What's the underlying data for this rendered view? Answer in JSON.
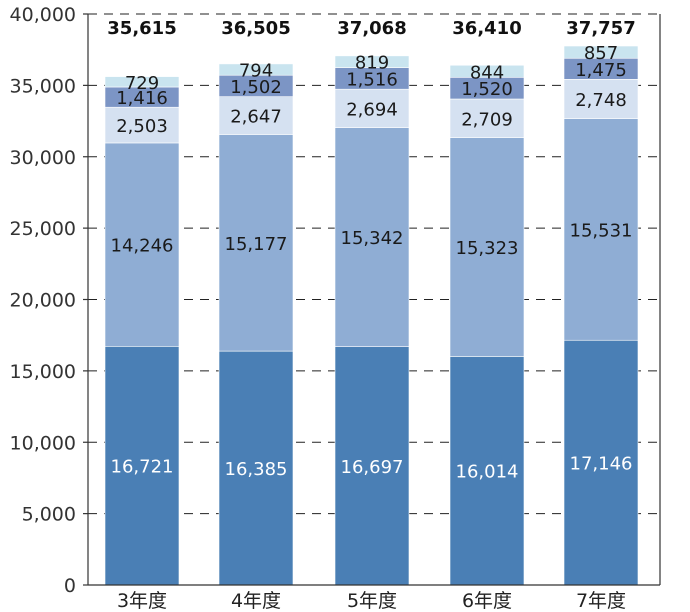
{
  "chart_data": {
    "type": "bar",
    "stacked": true,
    "title": "",
    "xlabel": "",
    "ylabel": "",
    "ylim": [
      0,
      40000
    ],
    "yticks": [
      0,
      5000,
      10000,
      15000,
      20000,
      25000,
      30000,
      35000,
      40000
    ],
    "ytick_labels": [
      "0",
      "5,000",
      "10,000",
      "15,000",
      "20,000",
      "25,000",
      "30,000",
      "35,000",
      "40,000"
    ],
    "grid": true,
    "categories": [
      "3年度",
      "4年度",
      "5年度",
      "6年度",
      "7年度"
    ],
    "series": [
      {
        "values": [
          16721,
          16385,
          16697,
          16014,
          17146
        ],
        "labels": [
          "16,721",
          "16,385",
          "16,697",
          "16,014",
          "17,146"
        ],
        "color": "#4a7fb5",
        "label_color": "#ffffff"
      },
      {
        "values": [
          14246,
          15177,
          15342,
          15323,
          15531
        ],
        "labels": [
          "14,246",
          "15,177",
          "15,342",
          "15,323",
          "15,531"
        ],
        "color": "#8fadd4",
        "label_color": "#1a1a1a"
      },
      {
        "values": [
          2503,
          2647,
          2694,
          2709,
          2748
        ],
        "labels": [
          "2,503",
          "2,647",
          "2,694",
          "2,709",
          "2,748"
        ],
        "color": "#d5e1f1",
        "label_color": "#1a1a1a"
      },
      {
        "values": [
          1416,
          1502,
          1516,
          1520,
          1475
        ],
        "labels": [
          "1,416",
          "1,502",
          "1,516",
          "1,520",
          "1,475"
        ],
        "color": "#7c95c5",
        "label_color": "#1a1a1a"
      },
      {
        "values": [
          729,
          794,
          819,
          844,
          857
        ],
        "labels": [
          "729",
          "794",
          "819",
          "844",
          "857"
        ],
        "color": "#c9e4ef",
        "label_color": "#1a1a1a"
      }
    ],
    "totals": [
      35615,
      36505,
      37068,
      36410,
      37757
    ],
    "total_labels": [
      "35,615",
      "36,505",
      "37,068",
      "36,410",
      "37,757"
    ]
  }
}
